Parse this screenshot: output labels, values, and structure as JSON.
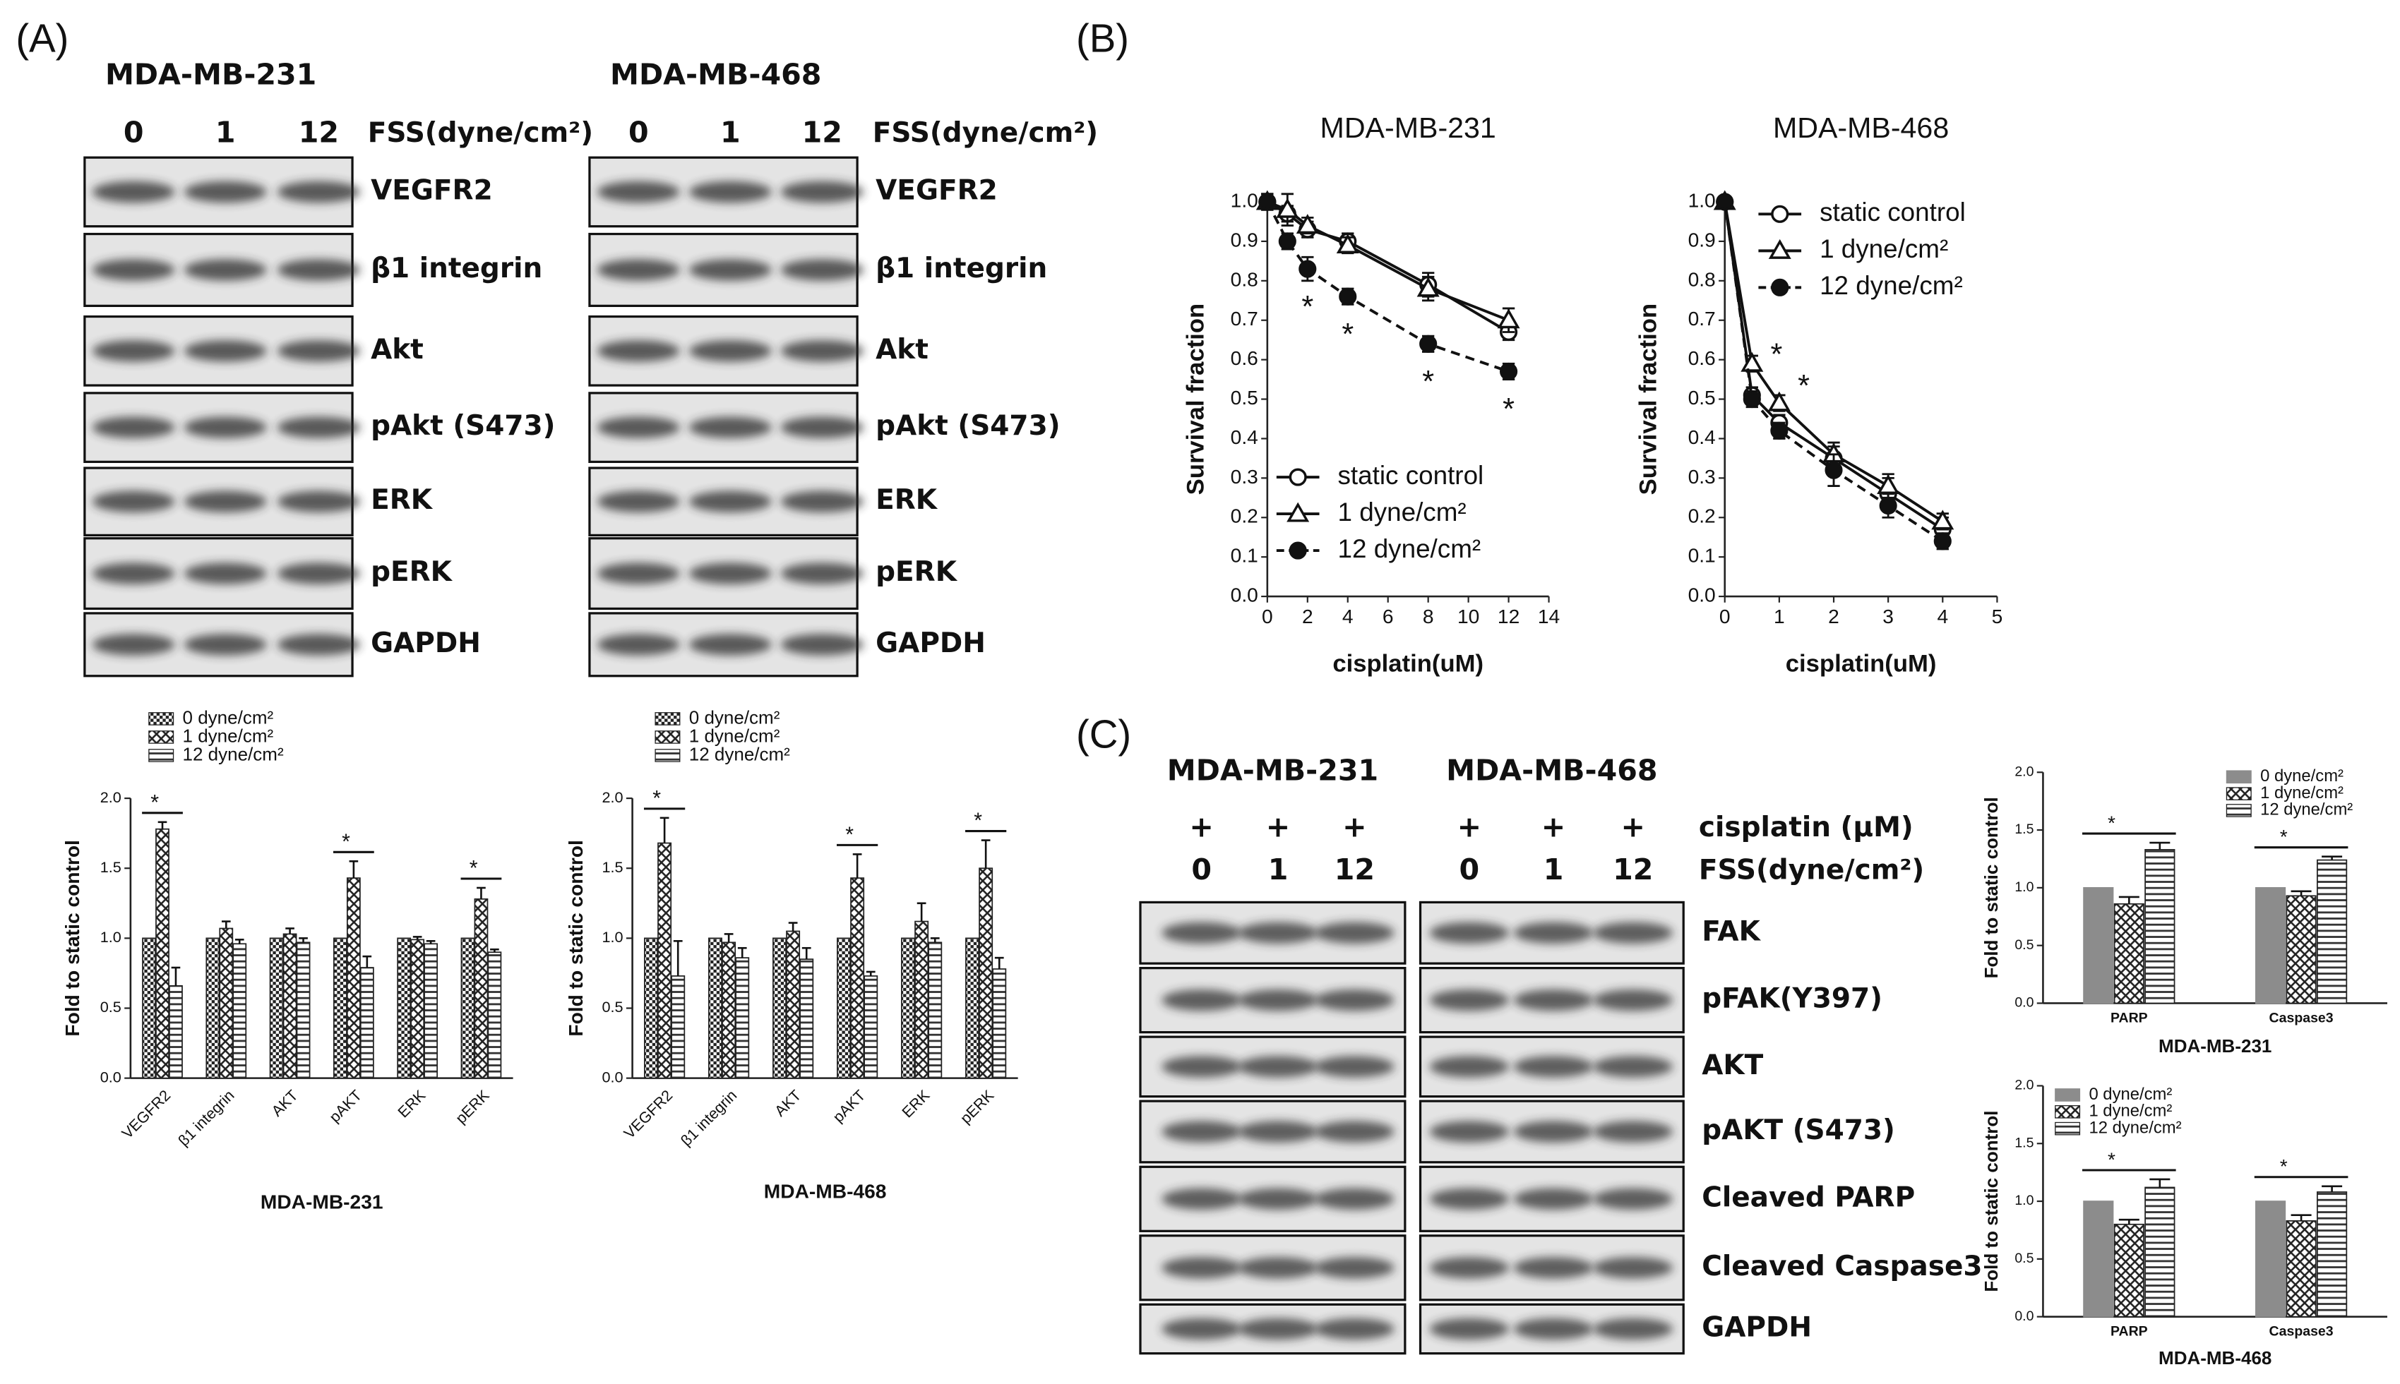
{
  "panel_labels": {
    "a": "(A)",
    "b": "(B)",
    "c": "(C)"
  },
  "blots_a": [
    {
      "cell_line": "MDA-MB-231",
      "lanes": [
        "0",
        "1",
        "12"
      ],
      "lane_title": "FSS(dyne/cm²)",
      "proteins": [
        "VEGFR2",
        "β1 integrin",
        "Akt",
        "pAkt (S473)",
        "ERK",
        "pERK",
        "GAPDH"
      ]
    },
    {
      "cell_line": "MDA-MB-468",
      "lanes": [
        "0",
        "1",
        "12"
      ],
      "lane_title": "FSS(dyne/cm²)",
      "proteins": [
        "VEGFR2",
        "β1 integrin",
        "Akt",
        "pAkt (S473)",
        "ERK",
        "pERK",
        "GAPDH"
      ]
    }
  ],
  "blots_c": {
    "cell_lines": [
      "MDA-MB-231",
      "MDA-MB-468"
    ],
    "treatment": "cisplatin (μM)",
    "treatment_marks": [
      "+",
      "+",
      "+",
      "+",
      "+",
      "+"
    ],
    "lanes": [
      "0",
      "1",
      "12",
      "0",
      "1",
      "12"
    ],
    "lane_title": "FSS(dyne/cm²)",
    "proteins": [
      "FAK",
      "pFAK(Y397)",
      "AKT",
      "pAKT (S473)",
      "Cleaved PARP",
      "Cleaved Caspase3",
      "GAPDH"
    ]
  },
  "chart_data": [
    {
      "type": "bar",
      "xlabel": "MDA-MB-231",
      "ylabel": "Fold to static control",
      "categories": [
        "VEGFR2",
        "β1 integrin",
        "AKT",
        "pAKT",
        "ERK",
        "pERK"
      ],
      "ylim": [
        0,
        2
      ],
      "yticks": [
        {
          "value": 0,
          "label": "0.0"
        },
        0.5,
        {
          "value": 1,
          "label": "1.0"
        },
        1.5,
        {
          "value": 2,
          "label": "2.0"
        }
      ],
      "series": [
        {
          "name": "0 dyne/cm²",
          "color": "#222222",
          "pattern": "dots",
          "values": [
            1,
            1,
            1,
            1,
            1,
            1
          ]
        },
        {
          "name": "1 dyne/cm²",
          "color": "#222222",
          "pattern": "cross",
          "values": [
            1.78,
            1.07,
            1.03,
            1.43,
            0.99,
            1.28
          ],
          "errors": [
            0.05,
            0.05,
            0.04,
            0.12,
            0.02,
            0.08
          ]
        },
        {
          "name": "12 dyne/cm²",
          "color": "#222222",
          "pattern": "hlines",
          "values": [
            0.66,
            0.96,
            0.97,
            0.79,
            0.96,
            0.9
          ],
          "errors": [
            0.13,
            0.03,
            0.03,
            0.08,
            0.02,
            0.02
          ]
        }
      ],
      "significance": [
        "*",
        null,
        null,
        "*",
        null,
        "*"
      ]
    },
    {
      "type": "bar",
      "xlabel": "MDA-MB-468",
      "ylabel": "Fold to static control",
      "categories": [
        "VEGFR2",
        "β1 integrin",
        "AKT",
        "pAKT",
        "ERK",
        "pERK"
      ],
      "ylim": [
        0,
        2
      ],
      "yticks": [
        {
          "value": 0,
          "label": "0.0"
        },
        0.5,
        {
          "value": 1,
          "label": "1.0"
        },
        1.5,
        {
          "value": 2,
          "label": "2.0"
        }
      ],
      "series": [
        {
          "name": "0 dyne/cm²",
          "color": "#222222",
          "pattern": "dots",
          "values": [
            1,
            1,
            1,
            1,
            1,
            1
          ]
        },
        {
          "name": "1 dyne/cm²",
          "color": "#222222",
          "pattern": "cross",
          "values": [
            1.68,
            0.97,
            1.05,
            1.43,
            1.12,
            1.5
          ],
          "errors": [
            0.18,
            0.06,
            0.06,
            0.17,
            0.13,
            0.2
          ]
        },
        {
          "name": "12 dyne/cm²",
          "color": "#222222",
          "pattern": "hlines",
          "values": [
            0.73,
            0.86,
            0.85,
            0.73,
            0.97,
            0.78
          ],
          "errors": [
            0.25,
            0.07,
            0.08,
            0.03,
            0.03,
            0.08
          ]
        }
      ],
      "significance": [
        "*",
        null,
        null,
        "*",
        null,
        "*"
      ]
    },
    {
      "type": "line",
      "title": "MDA-MB-231",
      "xlabel": "cisplatin(uM)",
      "ylabel": "Survival fraction",
      "x": [
        0,
        1,
        2,
        4,
        8,
        12
      ],
      "xlim": [
        0,
        14
      ],
      "xticks": [
        0,
        2,
        4,
        6,
        8,
        10,
        12,
        14
      ],
      "ylim": [
        0,
        1
      ],
      "yticks": [
        {
          "value": 0,
          "label": "0.0"
        },
        0.1,
        0.2,
        0.3,
        0.4,
        0.5,
        0.6,
        0.7,
        0.8,
        0.9,
        {
          "value": 1,
          "label": "1.0"
        }
      ],
      "legend": "lower left",
      "series": [
        {
          "name": "static control",
          "color": "#111111",
          "marker": "open-circle",
          "values": [
            1.0,
            0.97,
            0.93,
            0.9,
            0.79,
            0.67
          ],
          "errors": [
            0.02,
            0.02,
            0.02,
            0.02,
            0.03,
            0.02
          ]
        },
        {
          "name": "1 dyne/cm²",
          "color": "#111111",
          "marker": "open-triangle",
          "values": [
            1.0,
            0.98,
            0.94,
            0.89,
            0.78,
            0.7
          ],
          "errors": [
            0.02,
            0.04,
            0.02,
            0.02,
            0.03,
            0.03
          ]
        },
        {
          "name": "12 dyne/cm²",
          "color": "#111111",
          "marker": "filled-circle",
          "dashed": true,
          "values": [
            1.0,
            0.9,
            0.83,
            0.76,
            0.64,
            0.57
          ],
          "errors": [
            0.02,
            0.02,
            0.03,
            0.02,
            0.02,
            0.02
          ]
        }
      ],
      "significance": [
        null,
        null,
        "*",
        "*",
        "*",
        "*"
      ]
    },
    {
      "type": "line",
      "title": "MDA-MB-468",
      "xlabel": "cisplatin(uM)",
      "ylabel": "Survival fraction",
      "x": [
        0,
        0.5,
        1,
        2,
        3,
        4
      ],
      "xlim": [
        0,
        5
      ],
      "xticks": [
        0,
        1,
        2,
        3,
        4,
        5
      ],
      "ylim": [
        0,
        1
      ],
      "yticks": [
        {
          "value": 0,
          "label": "0.0"
        },
        0.1,
        0.2,
        0.3,
        0.4,
        0.5,
        0.6,
        0.7,
        0.8,
        0.9,
        {
          "value": 1,
          "label": "1.0"
        }
      ],
      "legend": "upper right",
      "series": [
        {
          "name": "static control",
          "color": "#111111",
          "marker": "open-circle",
          "values": [
            1.0,
            0.51,
            0.44,
            0.35,
            0.26,
            0.17
          ],
          "errors": [
            0.01,
            0.02,
            0.02,
            0.03,
            0.04,
            0.03
          ]
        },
        {
          "name": "1 dyne/cm²",
          "color": "#111111",
          "marker": "open-triangle",
          "values": [
            1.0,
            0.59,
            0.49,
            0.36,
            0.28,
            0.19
          ],
          "errors": [
            0.01,
            0.02,
            0.02,
            0.03,
            0.03,
            0.02
          ]
        },
        {
          "name": "12 dyne/cm²",
          "color": "#111111",
          "marker": "filled-circle",
          "dashed": true,
          "values": [
            1.0,
            0.5,
            0.42,
            0.32,
            0.23,
            0.14
          ],
          "errors": [
            0.01,
            0.02,
            0.02,
            0.04,
            0.03,
            0.02
          ]
        }
      ],
      "significance": [
        null,
        "*",
        "*",
        null,
        null,
        null
      ]
    },
    {
      "type": "bar",
      "xlabel": "MDA-MB-231",
      "ylabel": "Fold to static control",
      "categories": [
        "PARP",
        "Caspase3"
      ],
      "ylim": [
        0,
        2
      ],
      "yticks": [
        {
          "value": 0,
          "label": "0.0"
        },
        0.5,
        {
          "value": 1,
          "label": "1.0"
        },
        1.5,
        {
          "value": 2,
          "label": "2.0"
        }
      ],
      "series": [
        {
          "name": "0 dyne/cm²",
          "color": "#8c8c8c",
          "pattern": "solid",
          "values": [
            1,
            1
          ]
        },
        {
          "name": "1 dyne/cm²",
          "color": "#222222",
          "pattern": "cross",
          "values": [
            0.86,
            0.93
          ],
          "errors": [
            0.06,
            0.04
          ]
        },
        {
          "name": "12 dyne/cm²",
          "color": "#222222",
          "pattern": "hlines",
          "values": [
            1.33,
            1.24
          ],
          "errors": [
            0.06,
            0.03
          ]
        }
      ],
      "significance": [
        "*",
        "*"
      ]
    },
    {
      "type": "bar",
      "xlabel": "MDA-MB-468",
      "ylabel": "Fold to static control",
      "categories": [
        "PARP",
        "Caspase3"
      ],
      "ylim": [
        0,
        2
      ],
      "yticks": [
        {
          "value": 0,
          "label": "0.0"
        },
        0.5,
        {
          "value": 1,
          "label": "1.0"
        },
        1.5,
        {
          "value": 2,
          "label": "2.0"
        }
      ],
      "series": [
        {
          "name": "0 dyne/cm²",
          "color": "#8c8c8c",
          "pattern": "solid",
          "values": [
            1,
            1
          ]
        },
        {
          "name": "1 dyne/cm²",
          "color": "#222222",
          "pattern": "cross",
          "values": [
            0.8,
            0.83
          ],
          "errors": [
            0.04,
            0.05
          ]
        },
        {
          "name": "12 dyne/cm²",
          "color": "#222222",
          "pattern": "hlines",
          "values": [
            1.12,
            1.08
          ],
          "errors": [
            0.07,
            0.05
          ]
        }
      ],
      "significance": [
        "*",
        "*"
      ]
    }
  ]
}
